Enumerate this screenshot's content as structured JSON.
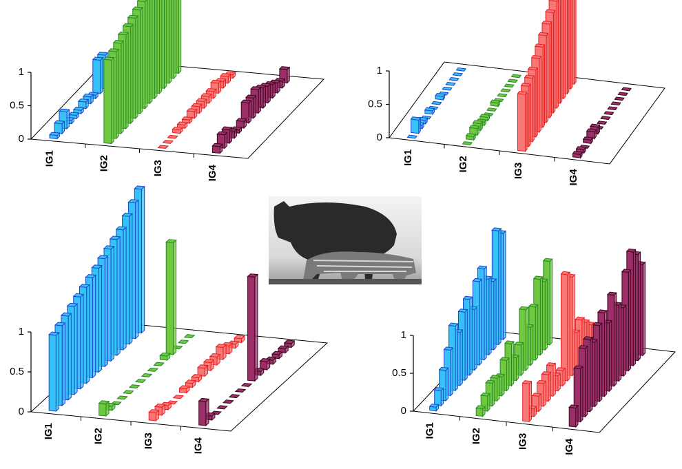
{
  "chart_data": [
    {
      "type": "bar3d",
      "categories": [
        "IG1",
        "IG2",
        "IG3",
        "IG4"
      ],
      "colors": [
        "#38c0f8",
        "#70c840",
        "#f87878",
        "#9c2f68"
      ],
      "edge_colors": [
        "#1c48c8",
        "#2a8a2a",
        "#e82020",
        "#3a0820"
      ],
      "ylim": [
        0,
        1
      ],
      "yticks": [
        0,
        0.5,
        1
      ],
      "values": [
        [
          0.05,
          0.15,
          0.25,
          0.05,
          0.05,
          0.05,
          0.1,
          0.1,
          0.05,
          0.5,
          0.5,
          0.1,
          0.15,
          0.1,
          0.1
        ],
        [
          1.25,
          1.3,
          1.35,
          1.4,
          1.45,
          1.5,
          1.55,
          1.6,
          1.65,
          1.7,
          1.75,
          1.8,
          1.85,
          1.9,
          2.0
        ],
        [
          0,
          0,
          0,
          0.05,
          0.05,
          0.05,
          0.1,
          0.1,
          0.1,
          0.1,
          0.1,
          0.15,
          0.1,
          0.1,
          0.05
        ],
        [
          0.1,
          0.2,
          0.2,
          0.1,
          0.05,
          0.1,
          0.3,
          0.3,
          0.35,
          0.3,
          0.25,
          0.2,
          0.15,
          0.1,
          0.2
        ]
      ]
    },
    {
      "type": "bar3d",
      "categories": [
        "IG1",
        "IG2",
        "IG3",
        "IG4"
      ],
      "colors": [
        "#38c0f8",
        "#70c840",
        "#f87878",
        "#9c2f68"
      ],
      "edge_colors": [
        "#1c48c8",
        "#2a8a2a",
        "#e82020",
        "#3a0820"
      ],
      "ylim": [
        0,
        1
      ],
      "yticks": [
        0,
        0.5,
        1
      ],
      "values": [
        [
          0,
          0.2,
          0.05,
          0.05,
          0,
          0.05,
          0,
          0,
          0.05,
          0,
          0,
          0,
          0,
          0,
          0
        ],
        [
          0,
          0.05,
          0.1,
          0.1,
          0.05,
          0.05,
          0,
          0,
          0.05,
          0,
          0,
          0,
          0,
          0,
          0
        ],
        [
          0.85,
          0.9,
          0.95,
          1.0,
          1.1,
          1.2,
          1.3,
          1.4,
          1.5,
          1.6,
          1.7,
          1.75,
          1.8,
          1.85,
          1.9
        ],
        [
          0.05,
          0.05,
          0,
          0.05,
          0.1,
          0.1,
          0,
          0,
          0,
          0,
          0,
          0,
          0,
          0,
          0
        ]
      ]
    },
    {
      "type": "bar3d",
      "categories": [
        "IG1",
        "IG2",
        "IG3",
        "IG4"
      ],
      "colors": [
        "#38c0f8",
        "#70c840",
        "#f87878",
        "#9c2f68"
      ],
      "edge_colors": [
        "#1c48c8",
        "#2a8a2a",
        "#e82020",
        "#3a0820"
      ],
      "ylim": [
        0,
        1
      ],
      "yticks": [
        0,
        0.5,
        1
      ],
      "values": [
        [
          0.95,
          1.0,
          1.05,
          1.1,
          1.15,
          1.2,
          1.25,
          1.3,
          1.35,
          1.4,
          1.45,
          1.5,
          1.6,
          1.7,
          1.8
        ],
        [
          0.15,
          0.05,
          0,
          0,
          0,
          0,
          0,
          0,
          0,
          0,
          0.05,
          1.4,
          0,
          0,
          0
        ],
        [
          0.1,
          0.1,
          0.05,
          0,
          0,
          0.05,
          0.05,
          0.05,
          0.1,
          0.1,
          0.1,
          0.15,
          0.1,
          0.05,
          0.05
        ],
        [
          0.3,
          0.05,
          0,
          0,
          0,
          0,
          0,
          0,
          1.3,
          0.05,
          0.1,
          0.05,
          0.05,
          0.05,
          0.05
        ]
      ]
    },
    {
      "type": "bar3d",
      "categories": [
        "IG1",
        "IG2",
        "IG3",
        "IG4"
      ],
      "colors": [
        "#38c0f8",
        "#70c840",
        "#f87878",
        "#9c2f68"
      ],
      "edge_colors": [
        "#1c48c8",
        "#2a8a2a",
        "#e82020",
        "#3a0820"
      ],
      "ylim": [
        0,
        1
      ],
      "yticks": [
        0,
        0.5,
        1
      ],
      "values": [
        [
          0.05,
          0.2,
          0.4,
          0.6,
          0.85,
          0.7,
          0.9,
          1.0,
          0.8,
          1.1,
          1.2,
          1.0,
          0.9,
          1.5,
          1.4
        ],
        [
          0.1,
          0.2,
          0.3,
          0.3,
          0.25,
          0.4,
          0.55,
          0.3,
          0.4,
          0.8,
          0.5,
          0.7,
          1.0,
          0.9,
          1.1
        ],
        [
          0.5,
          0.1,
          0.2,
          0.3,
          0.35,
          0.4,
          0.2,
          0.2,
          1.4,
          1.3,
          0.5,
          0.6,
          0.5,
          0.4,
          0.3
        ],
        [
          0.25,
          0.7,
          0.9,
          0.95,
          0.85,
          1.0,
          1.1,
          0.9,
          1.2,
          1.0,
          0.9,
          1.3,
          1.5,
          1.4,
          1.2
        ]
      ]
    }
  ]
}
